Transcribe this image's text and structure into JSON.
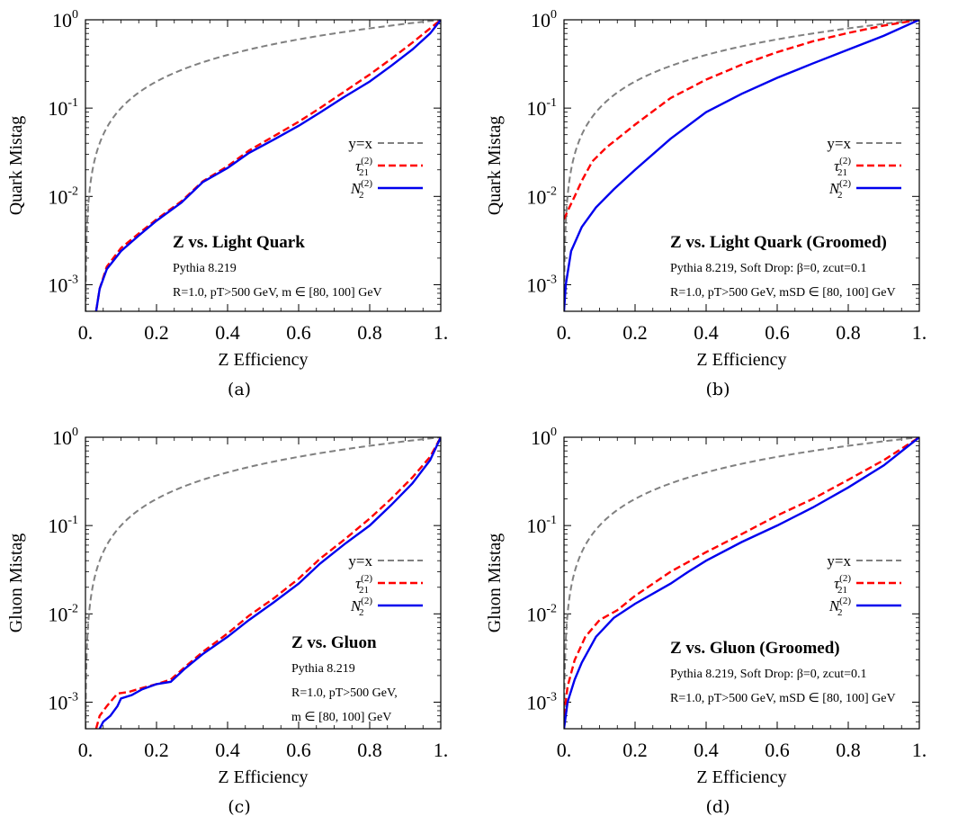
{
  "chart_data": [
    {
      "type": "line",
      "caption": "(a)",
      "xlabel": "Z Efficiency",
      "ylabel": "Quark Mistag",
      "xlim": [
        0,
        1
      ],
      "ylim": [
        0.0005,
        1
      ],
      "y_scale": "log",
      "x_ticks": [
        "0.",
        "0.2",
        "0.4",
        "0.6",
        "0.8",
        "1."
      ],
      "y_ticks": [
        "10^0",
        "10^-1",
        "10^-2",
        "10^-3"
      ],
      "legend_position": "right",
      "annotation_title": "Z vs. Light Quark",
      "annotation_lines": [
        "Pythia 8.219",
        "R=1.0, pT>500 GeV, m ∈ [80, 100] GeV"
      ],
      "series": [
        {
          "name": "y=x",
          "color": "#808080",
          "style": "dashed",
          "x": [
            0.001,
            1
          ],
          "y": "identity"
        },
        {
          "name": "τ21(2)",
          "color": "#ff0000",
          "style": "dashed",
          "x": [
            0.03,
            0.04,
            0.06,
            0.1,
            0.15,
            0.2,
            0.27,
            0.33,
            0.4,
            0.46,
            0.53,
            0.6,
            0.66,
            0.73,
            0.8,
            0.86,
            0.92,
            0.97,
            1.0
          ],
          "y": [
            0.0005,
            0.0009,
            0.0016,
            0.0026,
            0.0038,
            0.0055,
            0.0088,
            0.0148,
            0.022,
            0.033,
            0.048,
            0.07,
            0.1,
            0.155,
            0.24,
            0.36,
            0.55,
            0.8,
            1.0
          ]
        },
        {
          "name": "N2(2)",
          "color": "#0000ee",
          "style": "solid",
          "x": [
            0.03,
            0.04,
            0.06,
            0.1,
            0.15,
            0.2,
            0.27,
            0.33,
            0.4,
            0.46,
            0.53,
            0.6,
            0.66,
            0.73,
            0.8,
            0.86,
            0.92,
            0.97,
            1.0
          ],
          "y": [
            0.0005,
            0.0009,
            0.0015,
            0.0024,
            0.0036,
            0.0053,
            0.0085,
            0.0145,
            0.021,
            0.031,
            0.044,
            0.063,
            0.089,
            0.135,
            0.2,
            0.3,
            0.46,
            0.7,
            1.0
          ]
        }
      ]
    },
    {
      "type": "line",
      "caption": "(b)",
      "xlabel": "Z Efficiency",
      "ylabel": "Quark Mistag",
      "xlim": [
        0,
        1
      ],
      "ylim": [
        0.0005,
        1
      ],
      "y_scale": "log",
      "x_ticks": [
        "0.",
        "0.2",
        "0.4",
        "0.6",
        "0.8",
        "1."
      ],
      "y_ticks": [
        "10^0",
        "10^-1",
        "10^-2",
        "10^-3"
      ],
      "legend_position": "right",
      "annotation_title": "Z vs. Light Quark (Groomed)",
      "annotation_lines": [
        "Pythia 8.219, Soft Drop: β=0, zcut=0.1",
        "R=1.0, pT>500 GeV, mSD ∈ [80, 100] GeV"
      ],
      "series": [
        {
          "name": "y=x",
          "color": "#808080",
          "style": "dashed",
          "x": [
            0.001,
            1
          ],
          "y": "identity"
        },
        {
          "name": "τ21(2)",
          "color": "#ff0000",
          "style": "dashed",
          "x": [
            0.0,
            0.01,
            0.03,
            0.05,
            0.08,
            0.12,
            0.2,
            0.3,
            0.4,
            0.5,
            0.6,
            0.7,
            0.8,
            0.9,
            1.0
          ],
          "y": [
            0.0055,
            0.0068,
            0.01,
            0.015,
            0.025,
            0.036,
            0.065,
            0.13,
            0.21,
            0.31,
            0.43,
            0.57,
            0.71,
            0.86,
            1.0
          ]
        },
        {
          "name": "N2(2)",
          "color": "#0000ee",
          "style": "solid",
          "x": [
            0.0,
            0.005,
            0.02,
            0.05,
            0.09,
            0.14,
            0.2,
            0.3,
            0.4,
            0.5,
            0.6,
            0.7,
            0.8,
            0.9,
            1.0
          ],
          "y": [
            0.0005,
            0.001,
            0.0024,
            0.0045,
            0.0075,
            0.012,
            0.02,
            0.045,
            0.09,
            0.145,
            0.22,
            0.32,
            0.46,
            0.66,
            1.0
          ]
        }
      ]
    },
    {
      "type": "line",
      "caption": "(c)",
      "xlabel": "Z Efficiency",
      "ylabel": "Gluon Mistag",
      "xlim": [
        0,
        1
      ],
      "ylim": [
        0.0005,
        1
      ],
      "y_scale": "log",
      "x_ticks": [
        "0.",
        "0.2",
        "0.4",
        "0.6",
        "0.8",
        "1."
      ],
      "y_ticks": [
        "10^0",
        "10^-1",
        "10^-2",
        "10^-3"
      ],
      "legend_position": "right",
      "annotation_title": "Z vs. Gluon",
      "annotation_lines": [
        "Pythia 8.219",
        "R=1.0, pT>500 GeV,",
        "m ∈ [80, 100] GeV"
      ],
      "series": [
        {
          "name": "y=x",
          "color": "#808080",
          "style": "dashed",
          "x": [
            0.001,
            1
          ],
          "y": "identity"
        },
        {
          "name": "τ21(2)",
          "color": "#ff0000",
          "style": "dashed",
          "x": [
            0.03,
            0.04,
            0.06,
            0.09,
            0.12,
            0.16,
            0.2,
            0.24,
            0.28,
            0.33,
            0.4,
            0.46,
            0.53,
            0.6,
            0.66,
            0.73,
            0.8,
            0.86,
            0.92,
            0.97,
            1.0
          ],
          "y": [
            0.0005,
            0.0007,
            0.0009,
            0.00125,
            0.0013,
            0.00145,
            0.0016,
            0.0018,
            0.0025,
            0.0037,
            0.006,
            0.0095,
            0.015,
            0.025,
            0.042,
            0.07,
            0.12,
            0.2,
            0.35,
            0.6,
            1.0
          ]
        },
        {
          "name": "N2(2)",
          "color": "#0000ee",
          "style": "solid",
          "x": [
            0.04,
            0.05,
            0.07,
            0.09,
            0.1,
            0.13,
            0.16,
            0.2,
            0.24,
            0.28,
            0.33,
            0.4,
            0.46,
            0.53,
            0.6,
            0.66,
            0.73,
            0.8,
            0.86,
            0.92,
            0.97,
            1.0
          ],
          "y": [
            0.0005,
            0.0006,
            0.0007,
            0.0009,
            0.0011,
            0.0012,
            0.0014,
            0.0016,
            0.0017,
            0.0024,
            0.0035,
            0.0055,
            0.0085,
            0.0135,
            0.022,
            0.037,
            0.062,
            0.1,
            0.17,
            0.3,
            0.55,
            1.0
          ]
        }
      ]
    },
    {
      "type": "line",
      "caption": "(d)",
      "xlabel": "Z Efficiency",
      "ylabel": "Gluon Mistag",
      "xlim": [
        0,
        1
      ],
      "ylim": [
        0.0005,
        1
      ],
      "y_scale": "log",
      "x_ticks": [
        "0.",
        "0.2",
        "0.4",
        "0.6",
        "0.8",
        "1."
      ],
      "y_ticks": [
        "10^0",
        "10^-1",
        "10^-2",
        "10^-3"
      ],
      "legend_position": "right",
      "annotation_title": "Z vs. Gluon (Groomed)",
      "annotation_lines": [
        "Pythia 8.219, Soft Drop: β=0, zcut=0.1",
        "R=1.0, pT>500 GeV, mSD ∈ [80, 100] GeV"
      ],
      "series": [
        {
          "name": "y=x",
          "color": "#808080",
          "style": "dashed",
          "x": [
            0.001,
            1
          ],
          "y": "identity"
        },
        {
          "name": "τ21(2)",
          "color": "#ff0000",
          "style": "dashed",
          "x": [
            0.0,
            0.01,
            0.03,
            0.06,
            0.1,
            0.15,
            0.2,
            0.3,
            0.4,
            0.5,
            0.6,
            0.7,
            0.8,
            0.9,
            1.0
          ],
          "y": [
            0.0007,
            0.0015,
            0.003,
            0.0055,
            0.0085,
            0.011,
            0.016,
            0.03,
            0.05,
            0.08,
            0.13,
            0.2,
            0.33,
            0.55,
            1.0
          ]
        },
        {
          "name": "N2(2)",
          "color": "#0000ee",
          "style": "solid",
          "x": [
            0.0,
            0.01,
            0.03,
            0.05,
            0.09,
            0.14,
            0.2,
            0.3,
            0.35,
            0.4,
            0.5,
            0.6,
            0.7,
            0.8,
            0.9,
            1.0
          ],
          "y": [
            0.0005,
            0.001,
            0.0018,
            0.0028,
            0.0055,
            0.009,
            0.013,
            0.022,
            0.03,
            0.04,
            0.065,
            0.1,
            0.16,
            0.27,
            0.48,
            1.0
          ]
        }
      ]
    }
  ]
}
